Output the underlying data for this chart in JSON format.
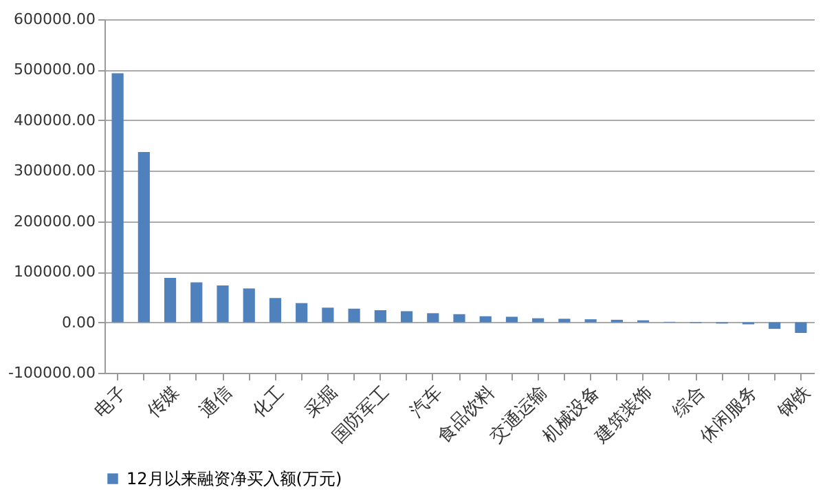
{
  "chart_data": {
    "type": "bar",
    "categories": [
      "电子",
      null,
      "传媒",
      null,
      "通信",
      null,
      "化工",
      null,
      "采掘",
      null,
      "国防军工",
      null,
      "汽车",
      null,
      "食品饮料",
      null,
      "交通运输",
      null,
      "机械设备",
      null,
      "建筑装饰",
      null,
      "综合",
      null,
      "休闲服务",
      null,
      "钢铁"
    ],
    "series": [
      {
        "name": "12月以来融资净买入额(万元)",
        "color": "#4f81bd",
        "values": [
          493000,
          337000,
          88000,
          79000,
          73000,
          67000,
          48000,
          38000,
          29000,
          27000,
          24000,
          22000,
          18000,
          16000,
          12000,
          11000,
          8000,
          7000,
          6000,
          5000,
          4000,
          1000,
          -1500,
          -2500,
          -4000,
          -13000,
          -21000
        ]
      }
    ],
    "ylim": [
      -100000,
      600000
    ],
    "yticks": [
      {
        "value": -100000,
        "label": "-100000.00"
      },
      {
        "value": 0,
        "label": "0.00"
      },
      {
        "value": 100000,
        "label": "100000.00"
      },
      {
        "value": 200000,
        "label": "200000.00"
      },
      {
        "value": 300000,
        "label": "300000.00"
      },
      {
        "value": 400000,
        "label": "400000.00"
      },
      {
        "value": 500000,
        "label": "500000.00"
      },
      {
        "value": 600000,
        "label": "600000.00"
      }
    ],
    "grid": "y",
    "legend": "bottom"
  }
}
